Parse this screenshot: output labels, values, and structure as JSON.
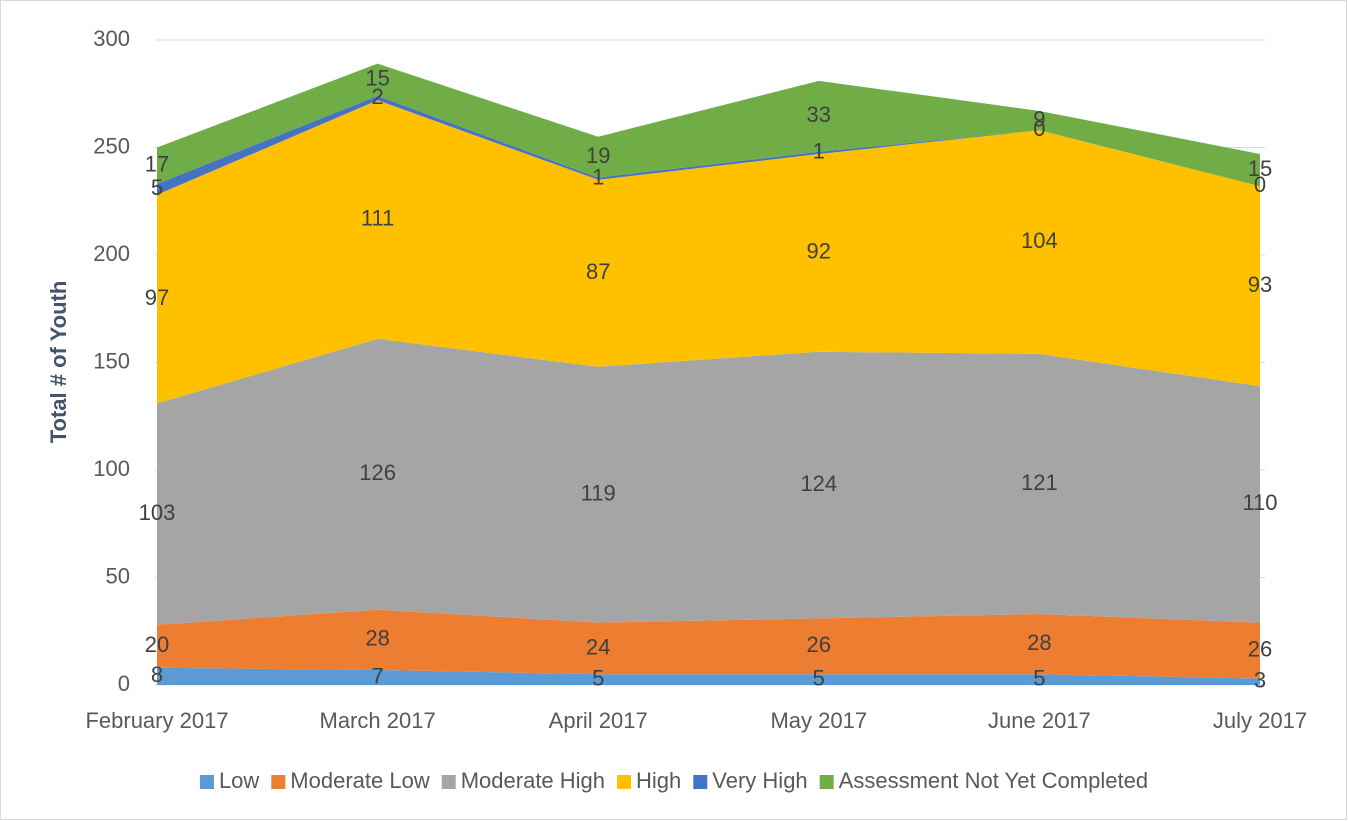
{
  "chart_data": {
    "type": "stacked_area",
    "y_axis_label": "Total  # of Youth",
    "categories": [
      "February 2017",
      "March 2017",
      "April 2017",
      "May 2017",
      "June 2017",
      "July 2017"
    ],
    "series": [
      {
        "name": "Low",
        "color": "#5b9bd5",
        "values": [
          8,
          7,
          5,
          5,
          5,
          3
        ]
      },
      {
        "name": "Moderate Low",
        "color": "#ed7d31",
        "values": [
          20,
          28,
          24,
          26,
          28,
          26
        ]
      },
      {
        "name": "Moderate High",
        "color": "#a5a5a5",
        "values": [
          103,
          126,
          119,
          124,
          121,
          110
        ]
      },
      {
        "name": "High",
        "color": "#ffc000",
        "values": [
          97,
          111,
          87,
          92,
          104,
          93
        ]
      },
      {
        "name": "Very High",
        "color": "#4472c4",
        "values": [
          5,
          2,
          1,
          1,
          0,
          0
        ]
      },
      {
        "name": "Assessment Not Yet Completed",
        "color": "#70ad47",
        "values": [
          17,
          15,
          19,
          33,
          9,
          15
        ]
      }
    ],
    "ylim": [
      0,
      300
    ],
    "yticks": [
      0,
      50,
      100,
      150,
      200,
      250,
      300
    ],
    "grid": true,
    "legend": "bottom"
  }
}
